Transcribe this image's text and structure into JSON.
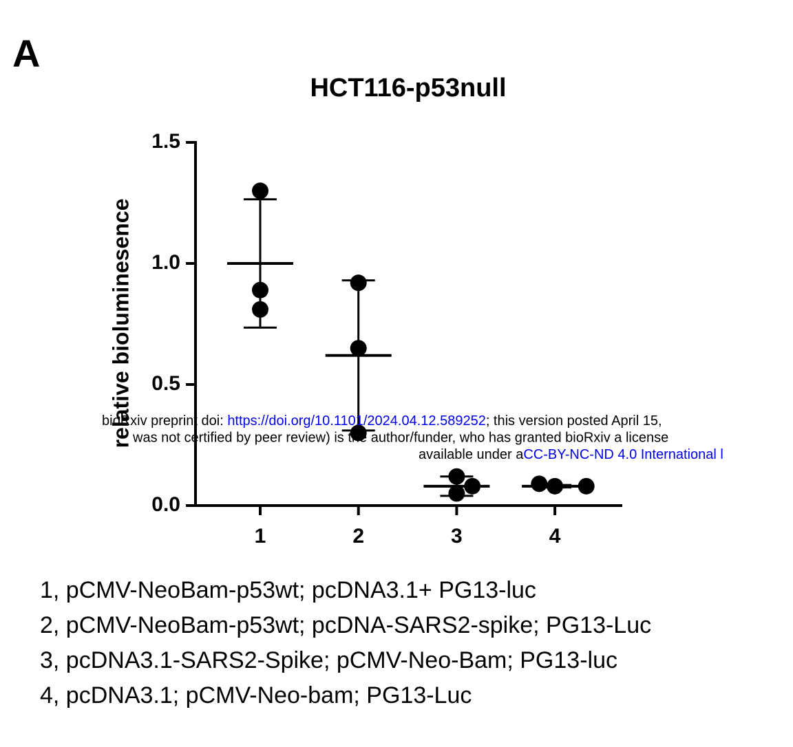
{
  "chart_data": {
    "type": "scatter",
    "panel_label": "A",
    "title": "HCT116-p53null",
    "y_label": "relative bioluminesence",
    "categories": [
      "1",
      "2",
      "3",
      "4"
    ],
    "points": [
      [
        1.3,
        0.89,
        0.81
      ],
      [
        0.92,
        0.65,
        0.3
      ],
      [
        0.12,
        0.05,
        0.08
      ],
      [
        0.08,
        0.09,
        0.08
      ]
    ],
    "means": [
      1.0,
      0.62,
      0.08,
      0.08
    ],
    "sd": [
      0.265,
      0.31,
      0.04,
      0.005
    ],
    "color": "#000000",
    "ylim": [
      0,
      1.5
    ],
    "yticks": [
      {
        "value": 0,
        "label": "0.0"
      },
      {
        "value": 0.5,
        "label": "0.5"
      },
      {
        "value": 1.0,
        "label": "1.0"
      },
      {
        "value": 1.5,
        "label": "1.5"
      }
    ],
    "notes": [
      "1, pCMV-NeoBam-p53wt; pcDNA3.1+ PG13-luc",
      "2, pCMV-NeoBam-p53wt; pcDNA-SARS2-spike; PG13-Luc",
      "3, pcDNA3.1-SARS2-Spike; pCMV-Neo-Bam; PG13-luc",
      "4, pcDNA3.1; pCMV-Neo-bam; PG13-Luc"
    ]
  },
  "watermark": {
    "line1": [
      "bioRxiv preprint doi: ",
      "https://doi.org/10.1101/2024.04.12.589252",
      "; this version posted April 15,"
    ],
    "line2": "was not certified by peer review) is the author/funder, who has granted bioRxiv a license",
    "line3": [
      "available under a",
      "CC-BY-NC-ND 4.0 International l"
    ]
  }
}
